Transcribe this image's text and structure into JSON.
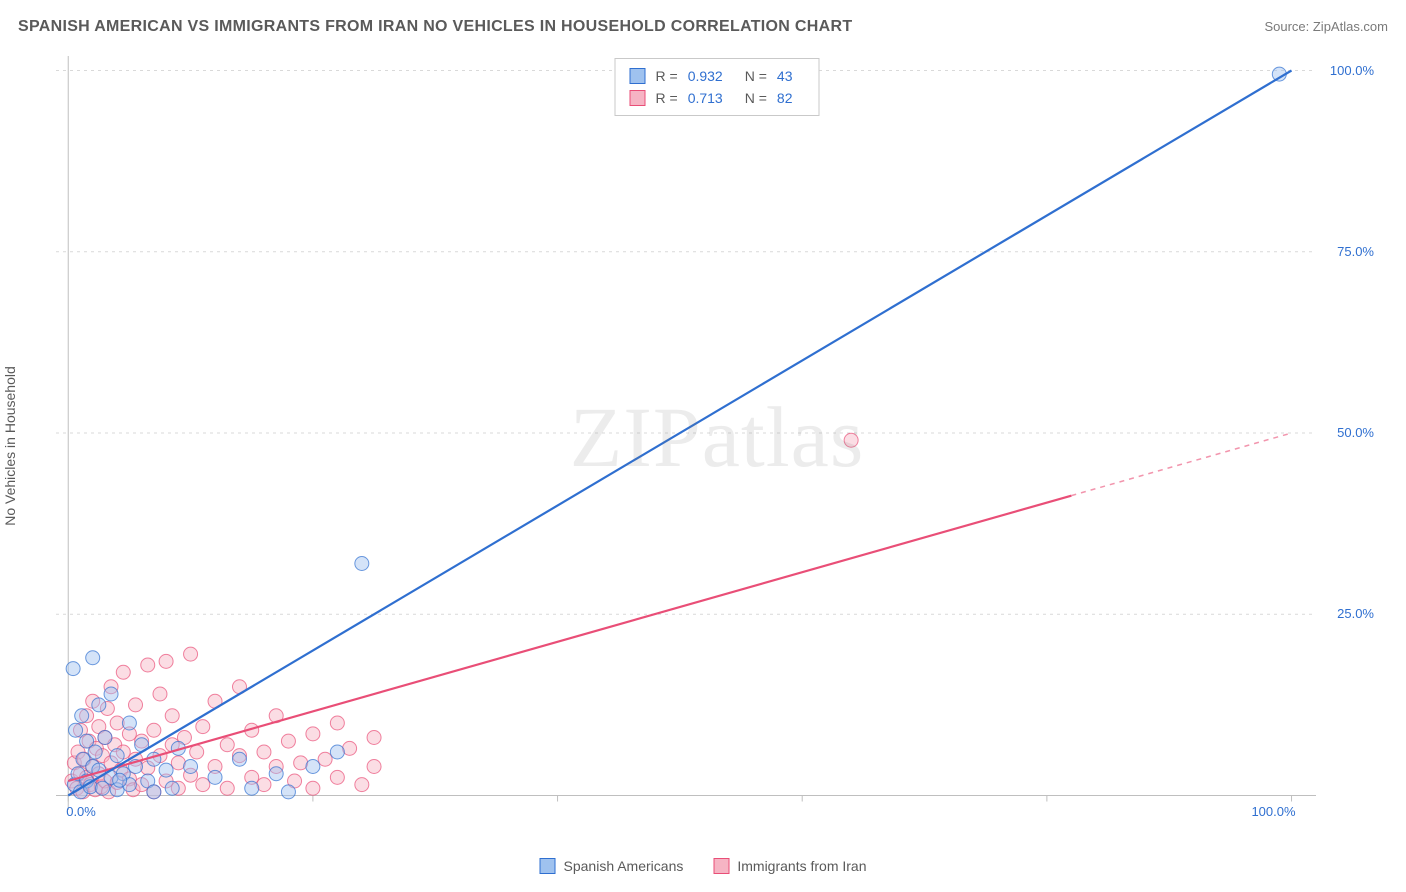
{
  "header": {
    "title": "SPANISH AMERICAN VS IMMIGRANTS FROM IRAN NO VEHICLES IN HOUSEHOLD CORRELATION CHART",
    "source_prefix": "Source: ",
    "source_name": "ZipAtlas.com"
  },
  "y_axis_label": "No Vehicles in Household",
  "watermark": "ZIPatlas",
  "series": {
    "a": {
      "name": "Spanish Americans",
      "fill": "#9fc2ef",
      "fill_alpha": 0.45,
      "stroke": "#2f6fd0",
      "line_color": "#2f6fd0",
      "r_label": "R =",
      "r_value": "0.932",
      "n_label": "N =",
      "n_value": "43",
      "regression": {
        "x1": 0,
        "y1": 0,
        "x2": 100,
        "y2": 100,
        "solid_to_x": 100
      },
      "points": [
        [
          0.5,
          1.5
        ],
        [
          0.8,
          3.0
        ],
        [
          1.0,
          0.5
        ],
        [
          1.2,
          5.0
        ],
        [
          1.5,
          2.0
        ],
        [
          1.5,
          7.5
        ],
        [
          1.8,
          1.2
        ],
        [
          2.0,
          4.0
        ],
        [
          2.0,
          19.0
        ],
        [
          2.2,
          6.0
        ],
        [
          2.5,
          3.5
        ],
        [
          2.5,
          12.5
        ],
        [
          2.8,
          1.0
        ],
        [
          3.0,
          8.0
        ],
        [
          0.4,
          17.5
        ],
        [
          3.5,
          2.5
        ],
        [
          3.5,
          14.0
        ],
        [
          4.0,
          5.5
        ],
        [
          4.0,
          0.8
        ],
        [
          4.5,
          3.0
        ],
        [
          5.0,
          10.0
        ],
        [
          5.0,
          1.5
        ],
        [
          5.5,
          4.0
        ],
        [
          6.0,
          7.0
        ],
        [
          6.5,
          2.0
        ],
        [
          7.0,
          0.5
        ],
        [
          7.0,
          5.0
        ],
        [
          8.0,
          3.5
        ],
        [
          8.5,
          1.0
        ],
        [
          9.0,
          6.5
        ],
        [
          10.0,
          4.0
        ],
        [
          12.0,
          2.5
        ],
        [
          14.0,
          5.0
        ],
        [
          15.0,
          1.0
        ],
        [
          17.0,
          3.0
        ],
        [
          18.0,
          0.5
        ],
        [
          20.0,
          4.0
        ],
        [
          22.0,
          6.0
        ],
        [
          24.0,
          32.0
        ],
        [
          4.2,
          2.1
        ],
        [
          1.1,
          11.0
        ],
        [
          0.6,
          9.0
        ],
        [
          99.0,
          99.5
        ]
      ]
    },
    "b": {
      "name": "Immigrants from Iran",
      "fill": "#f6b4c4",
      "fill_alpha": 0.45,
      "stroke": "#e94e77",
      "line_color": "#e94e77",
      "r_label": "R =",
      "r_value": "0.713",
      "n_label": "N =",
      "n_value": "82",
      "regression": {
        "x1": 0,
        "y1": 2,
        "x2": 100,
        "y2": 50,
        "solid_to_x": 82
      },
      "points": [
        [
          0.3,
          2.0
        ],
        [
          0.5,
          4.5
        ],
        [
          0.7,
          1.0
        ],
        [
          0.8,
          6.0
        ],
        [
          1.0,
          3.0
        ],
        [
          1.0,
          9.0
        ],
        [
          1.2,
          0.5
        ],
        [
          1.3,
          5.0
        ],
        [
          1.5,
          2.5
        ],
        [
          1.5,
          11.0
        ],
        [
          1.7,
          7.5
        ],
        [
          1.8,
          1.5
        ],
        [
          2.0,
          4.0
        ],
        [
          2.0,
          13.0
        ],
        [
          2.2,
          0.8
        ],
        [
          2.3,
          6.5
        ],
        [
          2.5,
          3.0
        ],
        [
          2.5,
          9.5
        ],
        [
          2.7,
          1.2
        ],
        [
          2.8,
          5.5
        ],
        [
          3.0,
          2.0
        ],
        [
          3.0,
          8.0
        ],
        [
          3.2,
          12.0
        ],
        [
          3.3,
          0.5
        ],
        [
          3.5,
          4.5
        ],
        [
          3.5,
          15.0
        ],
        [
          3.8,
          7.0
        ],
        [
          4.0,
          1.8
        ],
        [
          4.0,
          10.0
        ],
        [
          4.3,
          3.5
        ],
        [
          4.5,
          6.0
        ],
        [
          4.5,
          17.0
        ],
        [
          5.0,
          2.3
        ],
        [
          5.0,
          8.5
        ],
        [
          5.3,
          0.8
        ],
        [
          5.5,
          5.0
        ],
        [
          5.5,
          12.5
        ],
        [
          6.0,
          1.5
        ],
        [
          6.0,
          7.5
        ],
        [
          6.5,
          3.8
        ],
        [
          6.5,
          18.0
        ],
        [
          7.0,
          9.0
        ],
        [
          7.0,
          0.5
        ],
        [
          7.5,
          5.5
        ],
        [
          7.5,
          14.0
        ],
        [
          8.0,
          2.0
        ],
        [
          8.0,
          18.5
        ],
        [
          8.5,
          7.0
        ],
        [
          8.5,
          11.0
        ],
        [
          9.0,
          1.0
        ],
        [
          9.0,
          4.5
        ],
        [
          9.5,
          8.0
        ],
        [
          10.0,
          2.8
        ],
        [
          10.0,
          19.5
        ],
        [
          10.5,
          6.0
        ],
        [
          11.0,
          1.5
        ],
        [
          11.0,
          9.5
        ],
        [
          12.0,
          4.0
        ],
        [
          12.0,
          13.0
        ],
        [
          13.0,
          7.0
        ],
        [
          13.0,
          1.0
        ],
        [
          14.0,
          5.5
        ],
        [
          14.0,
          15.0
        ],
        [
          15.0,
          2.5
        ],
        [
          15.0,
          9.0
        ],
        [
          16.0,
          6.0
        ],
        [
          16.0,
          1.5
        ],
        [
          17.0,
          4.0
        ],
        [
          17.0,
          11.0
        ],
        [
          18.0,
          7.5
        ],
        [
          18.5,
          2.0
        ],
        [
          19.0,
          4.5
        ],
        [
          20.0,
          8.5
        ],
        [
          20.0,
          1.0
        ],
        [
          21.0,
          5.0
        ],
        [
          22.0,
          10.0
        ],
        [
          22.0,
          2.5
        ],
        [
          23.0,
          6.5
        ],
        [
          24.0,
          1.5
        ],
        [
          25.0,
          4.0
        ],
        [
          25.0,
          8.0
        ],
        [
          64.0,
          49.0
        ]
      ]
    }
  },
  "axes": {
    "xlim": [
      -1,
      102
    ],
    "ylim": [
      -2,
      102
    ],
    "x_ticks": [
      0,
      20,
      40,
      60,
      80,
      100
    ],
    "y_gridlines": [
      25,
      50,
      75,
      100
    ],
    "x_tick_labels": {
      "0": "0.0%",
      "100": "100.0%"
    },
    "y_tick_labels": {
      "25": "25.0%",
      "50": "50.0%",
      "75": "75.0%",
      "100": "100.0%"
    },
    "grid_color": "#d9d9d9",
    "axis_color": "#bfbfbf",
    "tick_label_color": "#2f6fd0",
    "tick_label_fontsize": 13
  },
  "chart": {
    "type": "scatter",
    "marker_radius": 7,
    "marker_stroke_width": 1,
    "line_width": 2.2,
    "dash_pattern": "5,5",
    "background_color": "#ffffff"
  }
}
